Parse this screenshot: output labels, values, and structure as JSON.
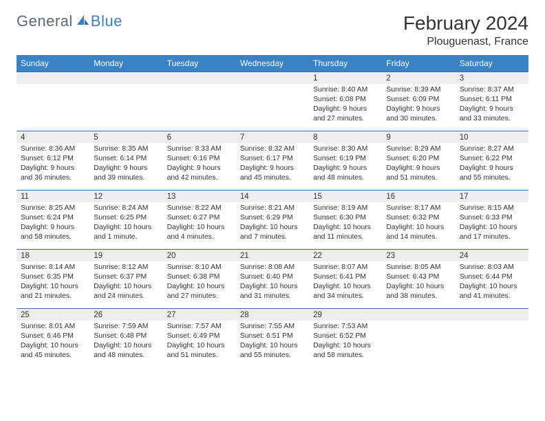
{
  "brand": {
    "part1": "General",
    "part2": "Blue"
  },
  "title": "February 2024",
  "location": "Plouguenast, France",
  "colors": {
    "header_bg": "#3b82c4",
    "header_text": "#ffffff",
    "border": "#3b6ea0",
    "daynum_bg": "#eeeeee",
    "text": "#333333",
    "logo_gray": "#5a6b7a",
    "logo_blue": "#3b82c4",
    "background": "#ffffff"
  },
  "weekdays": [
    "Sunday",
    "Monday",
    "Tuesday",
    "Wednesday",
    "Thursday",
    "Friday",
    "Saturday"
  ],
  "weeks": [
    [
      {
        "n": "",
        "lines": [
          "",
          "",
          "",
          ""
        ]
      },
      {
        "n": "",
        "lines": [
          "",
          "",
          "",
          ""
        ]
      },
      {
        "n": "",
        "lines": [
          "",
          "",
          "",
          ""
        ]
      },
      {
        "n": "",
        "lines": [
          "",
          "",
          "",
          ""
        ]
      },
      {
        "n": "1",
        "lines": [
          "Sunrise: 8:40 AM",
          "Sunset: 6:08 PM",
          "Daylight: 9 hours",
          "and 27 minutes."
        ]
      },
      {
        "n": "2",
        "lines": [
          "Sunrise: 8:39 AM",
          "Sunset: 6:09 PM",
          "Daylight: 9 hours",
          "and 30 minutes."
        ]
      },
      {
        "n": "3",
        "lines": [
          "Sunrise: 8:37 AM",
          "Sunset: 6:11 PM",
          "Daylight: 9 hours",
          "and 33 minutes."
        ]
      }
    ],
    [
      {
        "n": "4",
        "lines": [
          "Sunrise: 8:36 AM",
          "Sunset: 6:12 PM",
          "Daylight: 9 hours",
          "and 36 minutes."
        ]
      },
      {
        "n": "5",
        "lines": [
          "Sunrise: 8:35 AM",
          "Sunset: 6:14 PM",
          "Daylight: 9 hours",
          "and 39 minutes."
        ]
      },
      {
        "n": "6",
        "lines": [
          "Sunrise: 8:33 AM",
          "Sunset: 6:16 PM",
          "Daylight: 9 hours",
          "and 42 minutes."
        ]
      },
      {
        "n": "7",
        "lines": [
          "Sunrise: 8:32 AM",
          "Sunset: 6:17 PM",
          "Daylight: 9 hours",
          "and 45 minutes."
        ]
      },
      {
        "n": "8",
        "lines": [
          "Sunrise: 8:30 AM",
          "Sunset: 6:19 PM",
          "Daylight: 9 hours",
          "and 48 minutes."
        ]
      },
      {
        "n": "9",
        "lines": [
          "Sunrise: 8:29 AM",
          "Sunset: 6:20 PM",
          "Daylight: 9 hours",
          "and 51 minutes."
        ]
      },
      {
        "n": "10",
        "lines": [
          "Sunrise: 8:27 AM",
          "Sunset: 6:22 PM",
          "Daylight: 9 hours",
          "and 55 minutes."
        ]
      }
    ],
    [
      {
        "n": "11",
        "lines": [
          "Sunrise: 8:25 AM",
          "Sunset: 6:24 PM",
          "Daylight: 9 hours",
          "and 58 minutes."
        ]
      },
      {
        "n": "12",
        "lines": [
          "Sunrise: 8:24 AM",
          "Sunset: 6:25 PM",
          "Daylight: 10 hours",
          "and 1 minute."
        ]
      },
      {
        "n": "13",
        "lines": [
          "Sunrise: 8:22 AM",
          "Sunset: 6:27 PM",
          "Daylight: 10 hours",
          "and 4 minutes."
        ]
      },
      {
        "n": "14",
        "lines": [
          "Sunrise: 8:21 AM",
          "Sunset: 6:29 PM",
          "Daylight: 10 hours",
          "and 7 minutes."
        ]
      },
      {
        "n": "15",
        "lines": [
          "Sunrise: 8:19 AM",
          "Sunset: 6:30 PM",
          "Daylight: 10 hours",
          "and 11 minutes."
        ]
      },
      {
        "n": "16",
        "lines": [
          "Sunrise: 8:17 AM",
          "Sunset: 6:32 PM",
          "Daylight: 10 hours",
          "and 14 minutes."
        ]
      },
      {
        "n": "17",
        "lines": [
          "Sunrise: 8:15 AM",
          "Sunset: 6:33 PM",
          "Daylight: 10 hours",
          "and 17 minutes."
        ]
      }
    ],
    [
      {
        "n": "18",
        "lines": [
          "Sunrise: 8:14 AM",
          "Sunset: 6:35 PM",
          "Daylight: 10 hours",
          "and 21 minutes."
        ]
      },
      {
        "n": "19",
        "lines": [
          "Sunrise: 8:12 AM",
          "Sunset: 6:37 PM",
          "Daylight: 10 hours",
          "and 24 minutes."
        ]
      },
      {
        "n": "20",
        "lines": [
          "Sunrise: 8:10 AM",
          "Sunset: 6:38 PM",
          "Daylight: 10 hours",
          "and 27 minutes."
        ]
      },
      {
        "n": "21",
        "lines": [
          "Sunrise: 8:08 AM",
          "Sunset: 6:40 PM",
          "Daylight: 10 hours",
          "and 31 minutes."
        ]
      },
      {
        "n": "22",
        "lines": [
          "Sunrise: 8:07 AM",
          "Sunset: 6:41 PM",
          "Daylight: 10 hours",
          "and 34 minutes."
        ]
      },
      {
        "n": "23",
        "lines": [
          "Sunrise: 8:05 AM",
          "Sunset: 6:43 PM",
          "Daylight: 10 hours",
          "and 38 minutes."
        ]
      },
      {
        "n": "24",
        "lines": [
          "Sunrise: 8:03 AM",
          "Sunset: 6:44 PM",
          "Daylight: 10 hours",
          "and 41 minutes."
        ]
      }
    ],
    [
      {
        "n": "25",
        "lines": [
          "Sunrise: 8:01 AM",
          "Sunset: 6:46 PM",
          "Daylight: 10 hours",
          "and 45 minutes."
        ]
      },
      {
        "n": "26",
        "lines": [
          "Sunrise: 7:59 AM",
          "Sunset: 6:48 PM",
          "Daylight: 10 hours",
          "and 48 minutes."
        ]
      },
      {
        "n": "27",
        "lines": [
          "Sunrise: 7:57 AM",
          "Sunset: 6:49 PM",
          "Daylight: 10 hours",
          "and 51 minutes."
        ]
      },
      {
        "n": "28",
        "lines": [
          "Sunrise: 7:55 AM",
          "Sunset: 6:51 PM",
          "Daylight: 10 hours",
          "and 55 minutes."
        ]
      },
      {
        "n": "29",
        "lines": [
          "Sunrise: 7:53 AM",
          "Sunset: 6:52 PM",
          "Daylight: 10 hours",
          "and 58 minutes."
        ]
      },
      {
        "n": "",
        "lines": [
          "",
          "",
          "",
          ""
        ]
      },
      {
        "n": "",
        "lines": [
          "",
          "",
          "",
          ""
        ]
      }
    ]
  ]
}
